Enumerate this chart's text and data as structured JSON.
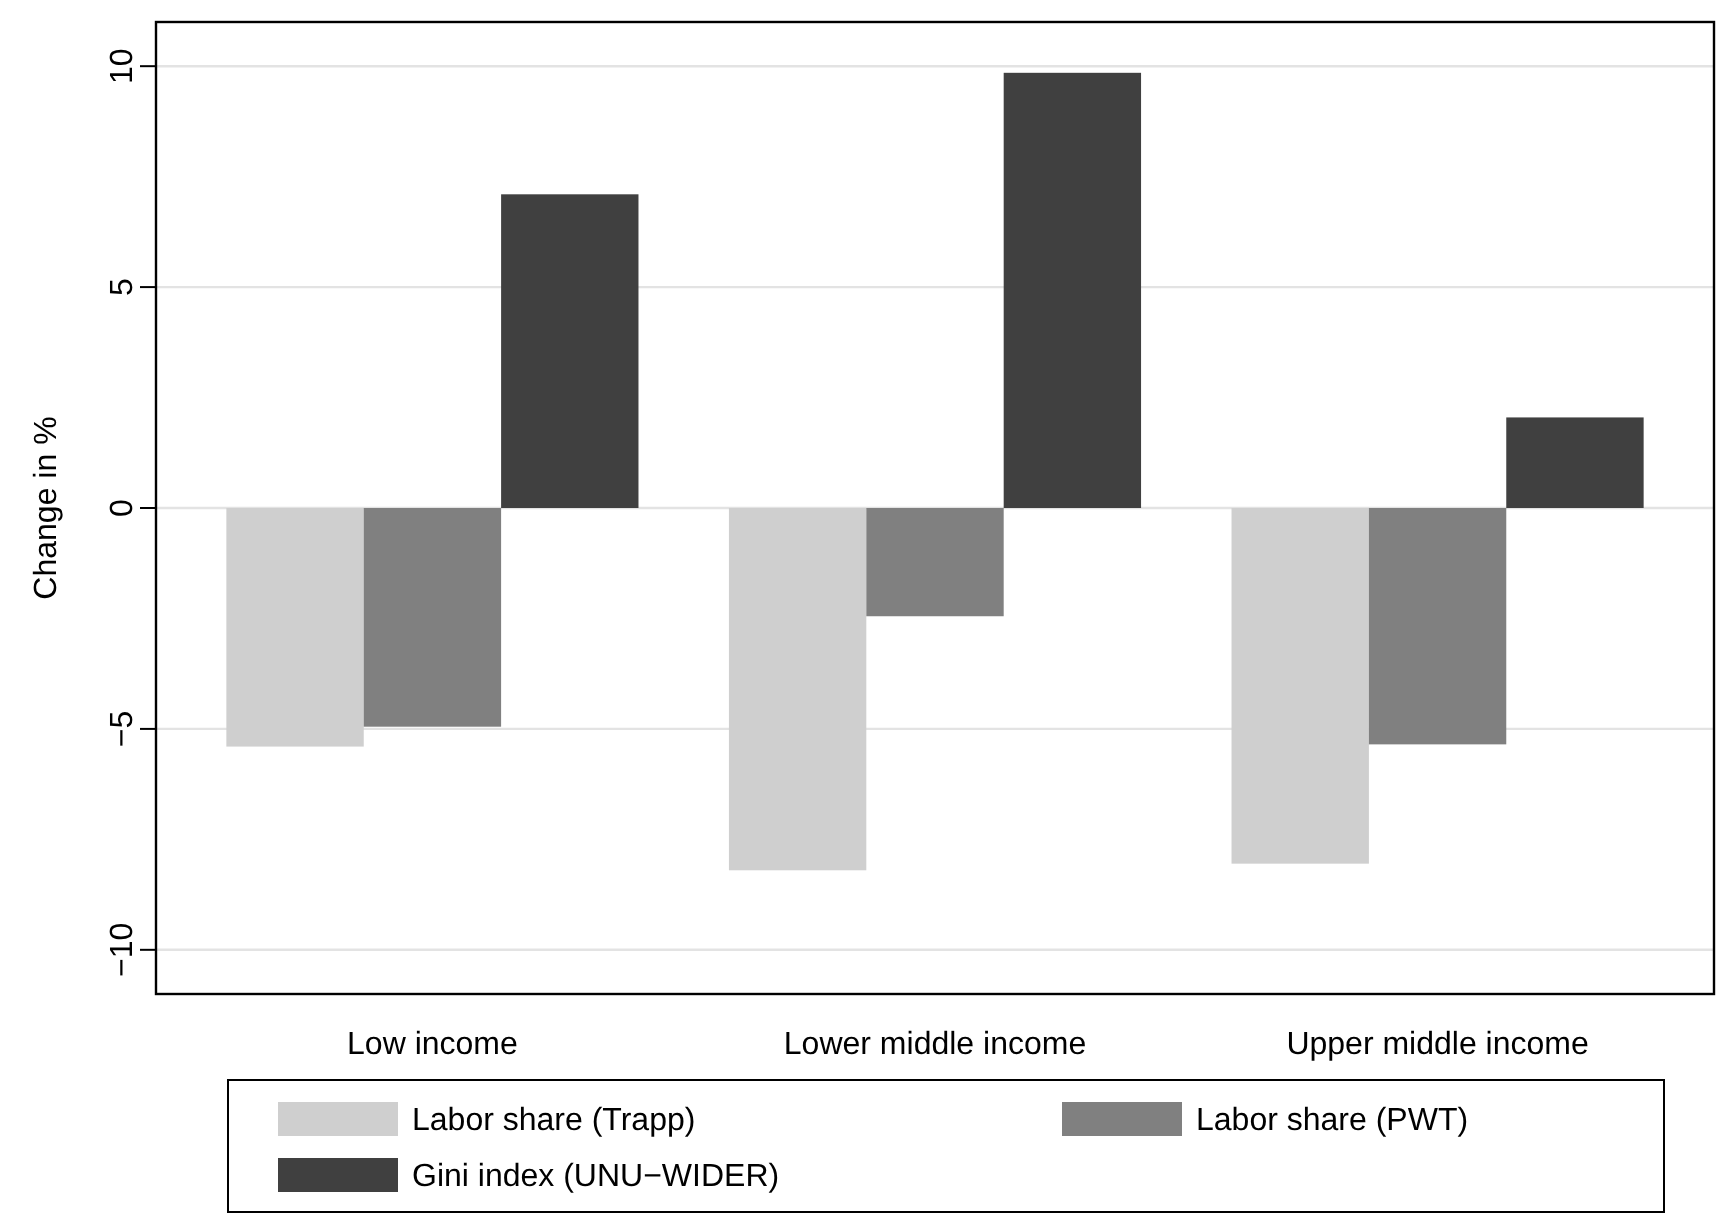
{
  "chart_data": {
    "type": "bar",
    "ylabel": "Change in %",
    "categories": [
      "Low income",
      "Lower middle income",
      "Upper middle income"
    ],
    "series": [
      {
        "name": "Labor share (Trapp)",
        "color": "#cfcfcf",
        "values": [
          -5.4,
          -8.2,
          -8.05
        ]
      },
      {
        "name": "Labor share (PWT)",
        "color": "#808080",
        "values": [
          -4.95,
          -2.45,
          -5.35
        ]
      },
      {
        "name": "Gini index (UNU−WIDER)",
        "color": "#404040",
        "values": [
          7.1,
          9.85,
          2.05
        ]
      }
    ],
    "ylim": [
      -11,
      11
    ],
    "yticks": [
      {
        "value": -10,
        "label": "−10"
      },
      {
        "value": -5,
        "label": "−5"
      },
      0,
      5,
      10
    ],
    "grid": "y",
    "legend": "bottom"
  }
}
